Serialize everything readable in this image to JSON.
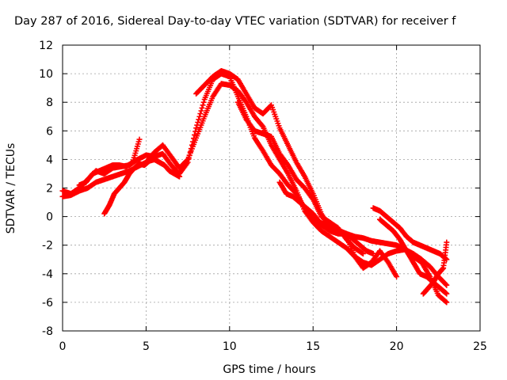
{
  "chart_data": {
    "type": "scatter",
    "title": "Day 287 of 2016, Sidereal Day-to-day VTEC variation (SDTVAR) for receiver f",
    "xlabel": "GPS time / hours",
    "ylabel": "SDTVAR / TECUs",
    "xlim": [
      0,
      25
    ],
    "ylim": [
      -8,
      12
    ],
    "xticks": [
      0,
      5,
      10,
      15,
      20,
      25
    ],
    "yticks": [
      -8,
      -6,
      -4,
      -2,
      0,
      2,
      4,
      6,
      8,
      10,
      12
    ],
    "grid": true,
    "marker": "+",
    "series_color": "#ff0000",
    "series": [
      {
        "x": [
          0.0,
          0.5,
          1.0,
          1.5,
          2.0,
          2.5,
          3.0,
          3.5,
          4.0,
          4.5,
          5.0,
          5.5,
          6.0,
          6.5,
          7.0,
          7.5,
          8.0,
          8.5,
          9.0,
          9.5,
          10.0,
          10.5,
          11.0,
          11.5,
          12.0,
          12.5,
          13.0,
          13.5,
          14.0,
          14.5,
          15.0,
          15.5,
          16.0,
          16.5,
          17.0,
          17.5,
          18.0,
          18.5,
          19.0,
          19.5,
          20.0,
          20.5,
          21.0,
          21.5,
          22.0,
          22.5,
          23.0
        ],
        "y": [
          1.8,
          1.6,
          2.0,
          2.6,
          3.2,
          3.0,
          3.4,
          3.5,
          3.6,
          4.0,
          4.3,
          4.2,
          4.4,
          3.6,
          3.0,
          3.8,
          6.2,
          8.2,
          9.6,
          10.0,
          9.8,
          8.4,
          7.0,
          5.5,
          4.6,
          3.6,
          3.0,
          2.2,
          1.6,
          0.6,
          -0.2,
          -0.6,
          -1.0,
          -1.2,
          -1.2,
          -1.4,
          -1.5,
          -1.7,
          -1.8,
          -1.9,
          -2.0,
          -2.3,
          -2.6,
          -3.0,
          -3.5,
          -4.2,
          -4.8
        ]
      },
      {
        "x": [
          0.0,
          0.5,
          1.0,
          1.5,
          2.0,
          2.5,
          3.0,
          3.5,
          4.0,
          4.5,
          5.0,
          5.5,
          6.0,
          6.5,
          7.0,
          7.5,
          8.0,
          8.5,
          9.0,
          9.5,
          10.0,
          10.5,
          11.0,
          11.5,
          12.0,
          12.5,
          13.0,
          13.5,
          14.0,
          14.5,
          15.0,
          15.5,
          16.0,
          16.5,
          17.0,
          17.5,
          18.0,
          18.5,
          19.0,
          19.5,
          20.0,
          20.5,
          21.0,
          21.5,
          22.0,
          22.5,
          23.0
        ],
        "y": [
          1.4,
          1.5,
          1.8,
          2.0,
          2.4,
          2.6,
          2.8,
          3.0,
          3.2,
          3.5,
          3.8,
          4.5,
          5.0,
          4.2,
          3.4,
          4.0,
          5.5,
          7.0,
          8.4,
          9.3,
          9.2,
          8.8,
          8.0,
          7.0,
          6.3,
          5.0,
          4.0,
          3.0,
          1.8,
          0.4,
          -0.4,
          -1.0,
          -1.4,
          -1.8,
          -2.2,
          -2.8,
          -3.2,
          -3.4,
          -3.0,
          -2.6,
          -2.4,
          -2.3,
          -2.8,
          -3.2,
          -4.2,
          -5.5,
          -6.0
        ]
      },
      {
        "x": [
          2.5,
          2.8,
          3.1,
          3.4,
          3.7,
          4.0,
          4.3,
          4.6,
          4.9,
          5.2,
          5.5,
          5.8,
          6.1,
          6.4,
          6.7,
          7.0
        ],
        "y": [
          0.2,
          0.8,
          1.6,
          2.0,
          2.4,
          3.0,
          3.4,
          3.7,
          3.6,
          3.9,
          4.0,
          3.8,
          3.6,
          3.2,
          3.0,
          2.8
        ]
      },
      {
        "x": [
          8.0,
          8.5,
          9.0,
          9.5,
          10.0,
          10.5,
          11.0,
          11.5,
          12.0,
          12.5,
          13.0,
          13.5,
          14.0,
          14.5,
          15.0,
          15.5,
          16.0,
          16.5,
          17.0,
          17.5,
          18.0,
          18.5,
          19.0,
          19.5,
          20.0
        ],
        "y": [
          8.6,
          9.2,
          9.8,
          10.2,
          10.0,
          9.6,
          8.6,
          7.6,
          7.2,
          7.8,
          6.2,
          5.0,
          3.8,
          2.8,
          1.6,
          0.2,
          -0.8,
          -1.0,
          -1.4,
          -2.8,
          -3.6,
          -3.2,
          -2.4,
          -3.2,
          -4.2
        ]
      },
      {
        "x": [
          10.5,
          11.0,
          11.5,
          12.0,
          12.5,
          13.0,
          13.5,
          14.0,
          14.5,
          15.0,
          15.5,
          16.0,
          16.5,
          17.0,
          17.5,
          18.0
        ],
        "y": [
          8.0,
          6.8,
          6.0,
          5.8,
          5.6,
          4.4,
          3.6,
          2.6,
          2.0,
          1.2,
          0.0,
          -0.4,
          -0.8,
          -1.6,
          -2.2,
          -2.6
        ]
      },
      {
        "x": [
          13.0,
          13.4,
          13.8,
          14.2,
          14.6,
          15.0,
          15.4,
          15.8,
          16.2,
          16.6,
          17.0,
          17.4,
          17.8,
          18.2,
          18.6
        ],
        "y": [
          2.4,
          1.6,
          1.4,
          1.0,
          0.6,
          0.2,
          -0.4,
          -0.6,
          -0.8,
          -1.0,
          -1.2,
          -1.6,
          -2.0,
          -2.4,
          -2.6
        ]
      },
      {
        "x": [
          18.6,
          19.0,
          19.4,
          19.8,
          20.2,
          20.6,
          21.0,
          21.4,
          21.8,
          22.2,
          22.6,
          23.0
        ],
        "y": [
          0.6,
          0.4,
          0.0,
          -0.4,
          -0.8,
          -1.4,
          -1.8,
          -2.0,
          -2.2,
          -2.4,
          -2.6,
          -3.0
        ]
      },
      {
        "x": [
          19.0,
          19.4,
          19.8,
          20.2,
          20.6,
          21.0,
          21.4,
          21.8,
          22.2,
          22.6,
          23.0
        ],
        "y": [
          -0.2,
          -0.6,
          -1.0,
          -1.6,
          -2.4,
          -3.2,
          -4.0,
          -4.2,
          -4.6,
          -5.0,
          -5.4
        ]
      },
      {
        "x": [
          21.6,
          21.9,
          22.2,
          22.5,
          22.8,
          23.0
        ],
        "y": [
          -5.4,
          -5.0,
          -4.6,
          -4.0,
          -3.6,
          -1.8
        ]
      },
      {
        "x": [
          1.0,
          1.4,
          1.8,
          2.2,
          2.6,
          3.0,
          3.4,
          3.8,
          4.2,
          4.6
        ],
        "y": [
          2.2,
          2.4,
          3.0,
          3.2,
          3.4,
          3.6,
          3.6,
          3.5,
          3.8,
          5.4
        ]
      }
    ]
  }
}
